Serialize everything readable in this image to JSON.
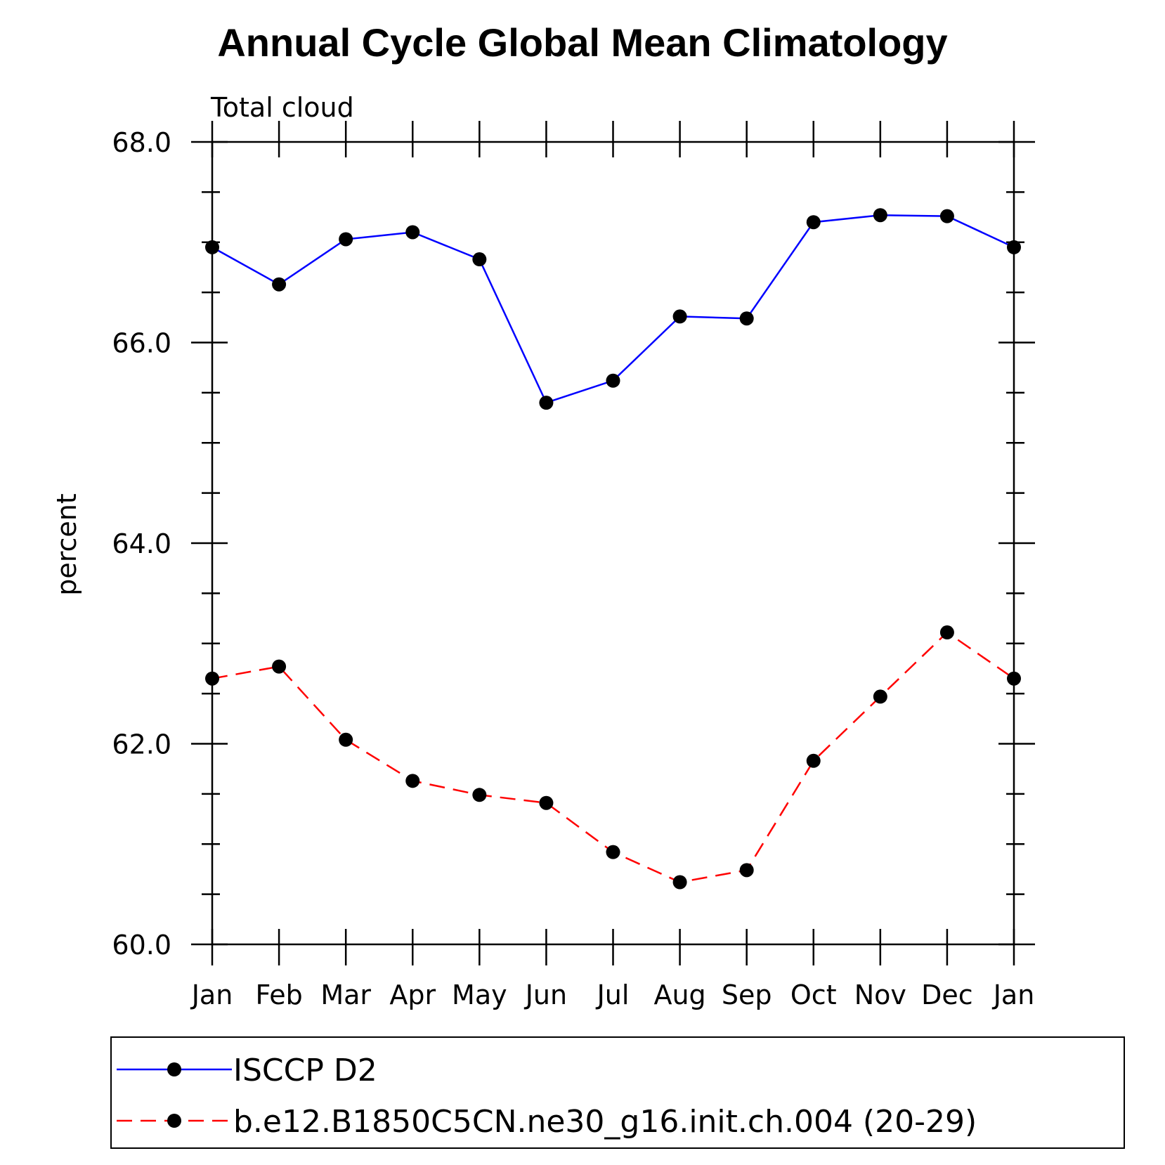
{
  "chart_data": {
    "type": "line",
    "title": "Annual Cycle Global Mean Climatology",
    "subtitle": "Total cloud",
    "ylabel": "percent",
    "xlabel": "",
    "categories": [
      "Jan",
      "Feb",
      "Mar",
      "Apr",
      "May",
      "Jun",
      "Jul",
      "Aug",
      "Sep",
      "Oct",
      "Nov",
      "Dec",
      "Jan"
    ],
    "ylim": [
      60.0,
      68.0
    ],
    "yticks": [
      "60.0",
      "62.0",
      "64.0",
      "66.0",
      "68.0"
    ],
    "grid": false,
    "legend_position": "bottom",
    "series": [
      {
        "name": "ISCCP D2",
        "color": "#0000ff",
        "style": "solid",
        "marker": "filled-circle",
        "values": [
          66.95,
          66.58,
          67.03,
          67.1,
          66.83,
          65.4,
          65.62,
          66.26,
          66.24,
          67.2,
          67.27,
          67.26,
          66.95
        ]
      },
      {
        "name": "b.e12.B1850C5CN.ne30_g16.init.ch.004 (20-29)",
        "color": "#ff0000",
        "style": "dashed",
        "marker": "filled-circle",
        "values": [
          62.65,
          62.77,
          62.04,
          61.63,
          61.49,
          61.41,
          60.92,
          60.62,
          60.74,
          61.83,
          62.47,
          63.11,
          62.65
        ]
      }
    ]
  }
}
